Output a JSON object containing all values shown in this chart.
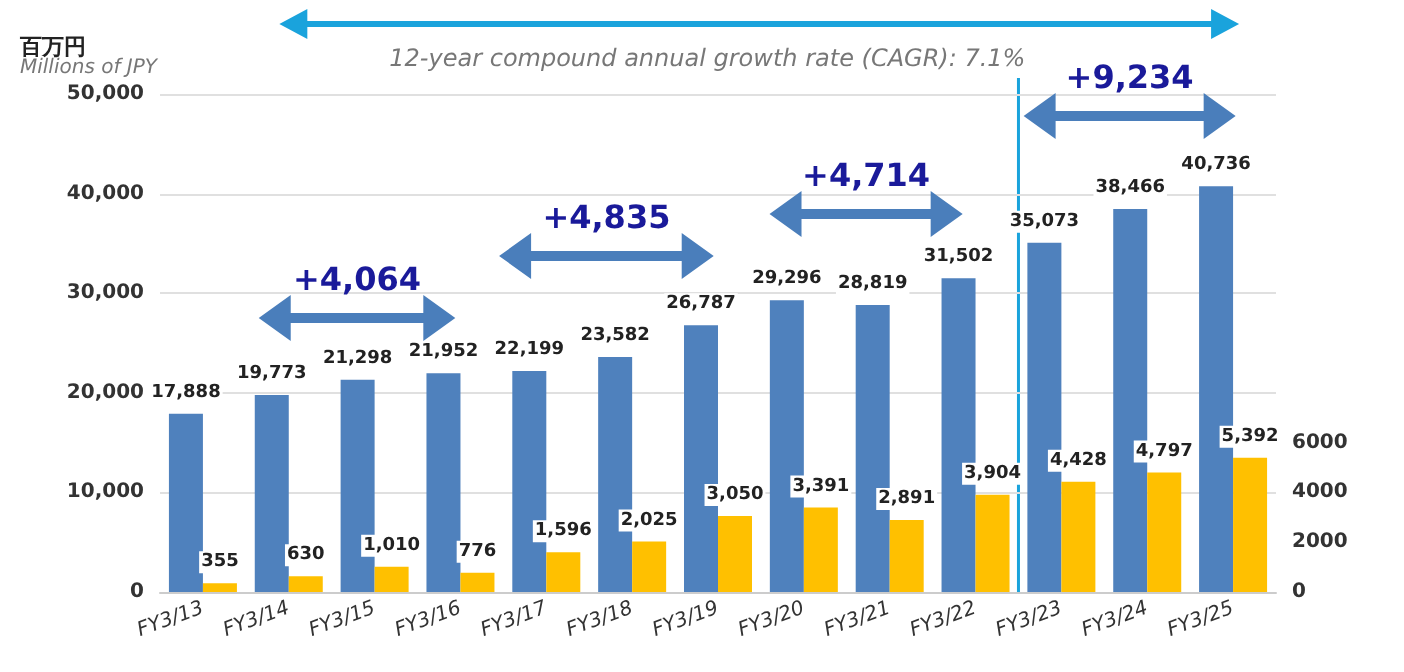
{
  "chart_data": {
    "type": "bar",
    "ylabel": "百万円\nMillions of JPY",
    "categories": [
      "FY3/13",
      "FY3/14",
      "FY3/15",
      "FY3/16",
      "FY3/17",
      "FY3/18",
      "FY3/19",
      "FY3/20",
      "FY3/21",
      "FY3/22",
      "FY3/23",
      "FY3/24",
      "FY3/25"
    ],
    "series": [
      {
        "color": "#4f81bd",
        "values": [
          17888,
          19773,
          21298,
          21952,
          22199,
          23582,
          26787,
          29296,
          28819,
          31502,
          35073,
          38466,
          40736
        ],
        "value_labels": [
          "17,888",
          "19,773",
          "21,298",
          "21,952",
          "22,199",
          "23,582",
          "26,787",
          "29,296",
          "28,819",
          "31,502",
          "35,073",
          "38,466",
          "40,736"
        ]
      },
      {
        "color": "#ffc000",
        "axis": "y2",
        "values": [
          355,
          630,
          1010,
          776,
          1596,
          2025,
          3050,
          3391,
          2891,
          3904,
          4428,
          4797,
          5392
        ],
        "value_labels": [
          "355",
          "630",
          "1,010",
          "776",
          "1,596",
          "2,025",
          "3,050",
          "3,391",
          "2,891",
          "3,904",
          "4,428",
          "4,797",
          "5,392"
        ]
      }
    ],
    "ylim": [
      0,
      50000
    ],
    "yticks": [
      0,
      {
        "value": 10000,
        "label": "10,000"
      },
      {
        "value": 20000,
        "label": "20,000"
      },
      {
        "value": 30000,
        "label": "30,000"
      },
      {
        "value": 40000,
        "label": "40,000"
      },
      {
        "value": 50000,
        "label": "50,000"
      }
    ],
    "y2lim": [
      0,
      20000
    ],
    "y2ticks": [
      0,
      2000,
      4000,
      6000
    ],
    "grid": "y",
    "ref_lines": [
      {
        "axis": "x",
        "value": "FY3/23",
        "color": "#1aa3dc"
      }
    ],
    "annotations": [
      "12-year compound annual growth rate (CAGR): 7.1%",
      "+4,064",
      "+4,835",
      "+4,714",
      "+9,234"
    ]
  }
}
